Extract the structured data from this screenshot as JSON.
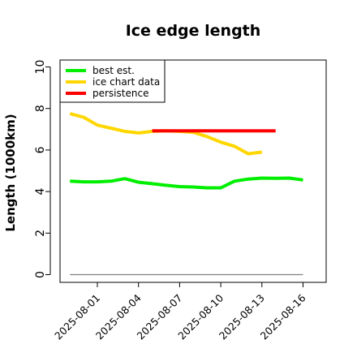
{
  "chart_data": {
    "type": "line",
    "title": "Ice edge length",
    "xlabel": "",
    "ylabel": "Length (1000km)",
    "ylim": [
      -0.3,
      10.5
    ],
    "yticks": [
      0,
      2,
      4,
      6,
      8,
      10
    ],
    "xlim": [
      "2025-07-30",
      "2025-08-17"
    ],
    "x_tick_labels": [
      "2025-08-01",
      "2025-08-04",
      "2025-08-07",
      "2025-08-10",
      "2025-08-13",
      "2025-08-16"
    ],
    "legend": {
      "position": "top-left"
    },
    "grid": false,
    "series": [
      {
        "name": "best est.",
        "color": "#00ee00",
        "points": [
          [
            "2025-07-30",
            4.5
          ],
          [
            "2025-07-31",
            4.47
          ],
          [
            "2025-08-01",
            4.47
          ],
          [
            "2025-08-02",
            4.5
          ],
          [
            "2025-08-03",
            4.62
          ],
          [
            "2025-08-04",
            4.45
          ],
          [
            "2025-08-05",
            4.38
          ],
          [
            "2025-08-06",
            4.3
          ],
          [
            "2025-08-07",
            4.24
          ],
          [
            "2025-08-08",
            4.22
          ],
          [
            "2025-08-09",
            4.18
          ],
          [
            "2025-08-10",
            4.18
          ],
          [
            "2025-08-11",
            4.5
          ],
          [
            "2025-08-12",
            4.6
          ],
          [
            "2025-08-13",
            4.65
          ],
          [
            "2025-08-14",
            4.64
          ],
          [
            "2025-08-15",
            4.65
          ],
          [
            "2025-08-16",
            4.56
          ]
        ]
      },
      {
        "name": "ice chart data",
        "color": "#ffd700",
        "points": [
          [
            "2025-07-30",
            7.75
          ],
          [
            "2025-07-31",
            7.58
          ],
          [
            "2025-08-01",
            7.2
          ],
          [
            "2025-08-02",
            7.05
          ],
          [
            "2025-08-03",
            6.9
          ],
          [
            "2025-08-04",
            6.82
          ],
          [
            "2025-08-05",
            6.9
          ],
          [
            "2025-08-06",
            6.92
          ],
          [
            "2025-08-07",
            6.9
          ],
          [
            "2025-08-08",
            6.85
          ],
          [
            "2025-08-09",
            6.65
          ],
          [
            "2025-08-10",
            6.38
          ],
          [
            "2025-08-11",
            6.18
          ],
          [
            "2025-08-12",
            5.82
          ],
          [
            "2025-08-13",
            5.9
          ]
        ]
      },
      {
        "name": "persistence",
        "color": "#ff0000",
        "points": [
          [
            "2025-08-05",
            6.92
          ],
          [
            "2025-08-14",
            6.92
          ]
        ]
      },
      {
        "color": "#808080",
        "points": [
          [
            "2025-07-30",
            0
          ],
          [
            "2025-08-16",
            0
          ]
        ]
      }
    ]
  }
}
